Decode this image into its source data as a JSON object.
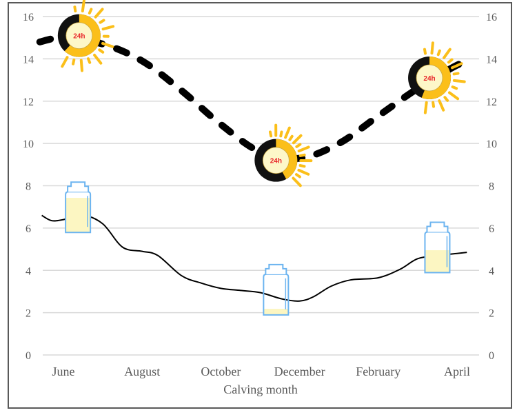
{
  "chart_data": {
    "type": "line",
    "title": "",
    "xlabel": "Calving month",
    "ylabel_left": "",
    "ylabel_right": "",
    "x_tick_labels": [
      "June",
      "August",
      "October",
      "December",
      "February",
      "April"
    ],
    "x_tick_months_index": [
      0,
      2,
      4,
      6,
      8,
      10
    ],
    "y_ticks": [
      0,
      2,
      4,
      6,
      8,
      10,
      12,
      14,
      16
    ],
    "ylim_left": [
      0,
      16
    ],
    "ylim_right": [
      0,
      16
    ],
    "grid": "horizontal",
    "series": [
      {
        "style": "dashed-thick-black",
        "x": [
          -0.6,
          0,
          1,
          2,
          3,
          4,
          5,
          6,
          7,
          8,
          9,
          10,
          10.3
        ],
        "y": [
          14.8,
          15.0,
          14.7,
          13.9,
          12.5,
          10.9,
          9.6,
          9.3,
          10.0,
          11.3,
          12.6,
          13.7,
          13.8
        ]
      },
      {
        "style": "solid-thin-black",
        "x": [
          -0.55,
          -0.3,
          0,
          0.5,
          1.0,
          1.5,
          2.0,
          2.4,
          3.0,
          3.5,
          4.0,
          4.5,
          5.0,
          5.55,
          6.0,
          6.35,
          6.8,
          7.3,
          8.0,
          8.55,
          9.0,
          9.5,
          10.0,
          10.25
        ],
        "y": [
          6.6,
          6.35,
          6.4,
          6.6,
          6.2,
          5.1,
          4.9,
          4.7,
          3.75,
          3.4,
          3.15,
          3.05,
          2.95,
          2.65,
          2.55,
          2.75,
          3.25,
          3.55,
          3.65,
          4.05,
          4.55,
          4.7,
          4.8,
          4.85
        ]
      }
    ],
    "annotations": {
      "suns": [
        {
          "label": "24h",
          "x": 0.4,
          "y": 15.1,
          "daylight_fraction": 0.62
        },
        {
          "label": "24h",
          "x": 5.4,
          "y": 9.2,
          "daylight_fraction": 0.42
        },
        {
          "label": "24h",
          "x": 9.3,
          "y": 13.1,
          "daylight_fraction": 0.56
        }
      ],
      "milk_bottles": [
        {
          "x": 0.37,
          "y": 7.0,
          "fill_fraction": 0.85
        },
        {
          "x": 5.4,
          "y": 3.1,
          "fill_fraction": 0.15
        },
        {
          "x": 9.5,
          "y": 5.1,
          "fill_fraction": 0.55
        }
      ]
    },
    "colors": {
      "grid": "#d9d9d9",
      "line": "#000000",
      "sun_yellow": "#fbbf1a",
      "sun_center": "#fdf7c8",
      "sun_text": "#e8262a",
      "bottle_outline": "#6cb4f0",
      "milk": "#fcf6c2",
      "border": "#595959"
    }
  }
}
